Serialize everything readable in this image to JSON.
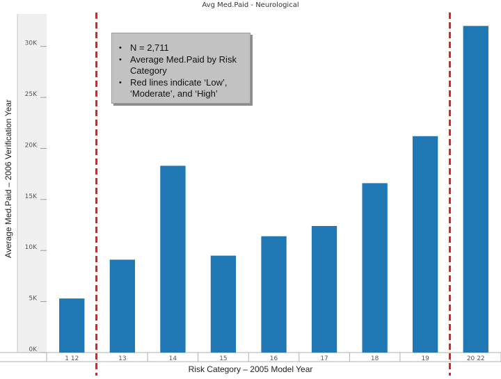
{
  "chart_data": {
    "type": "bar",
    "title": "Avg Med.Paid - Neurological",
    "xlabel": "Risk Category – 2005 Model Year",
    "ylabel": "Average Med.Paid – 2006 Verification Year",
    "categories": [
      "1 12",
      "13",
      "14",
      "15",
      "16",
      "17",
      "18",
      "19",
      "20 22"
    ],
    "values": [
      5300,
      9100,
      18300,
      9500,
      11400,
      12400,
      16600,
      21200,
      32000
    ],
    "ylim": [
      0,
      32500
    ],
    "yticks": [
      0,
      5000,
      10000,
      15000,
      20000,
      25000,
      30000
    ],
    "ytick_labels": [
      "0K",
      "5K",
      "10K",
      "15K",
      "20K",
      "25K",
      "30K"
    ],
    "bar_color": "#1f77b4",
    "threshold_color": "#e02020",
    "thresholds": [
      {
        "between": [
          "1 12",
          "13"
        ],
        "style": "dashed"
      },
      {
        "between": [
          "19",
          "20 22"
        ],
        "style": "dashed"
      }
    ],
    "grid": false,
    "legend": "none",
    "annotation": [
      "N = 2,711",
      "Average Med.Paid by Risk Category",
      "Red lines indicate ‘Low’, ‘Moderate’, and ‘High’"
    ]
  }
}
